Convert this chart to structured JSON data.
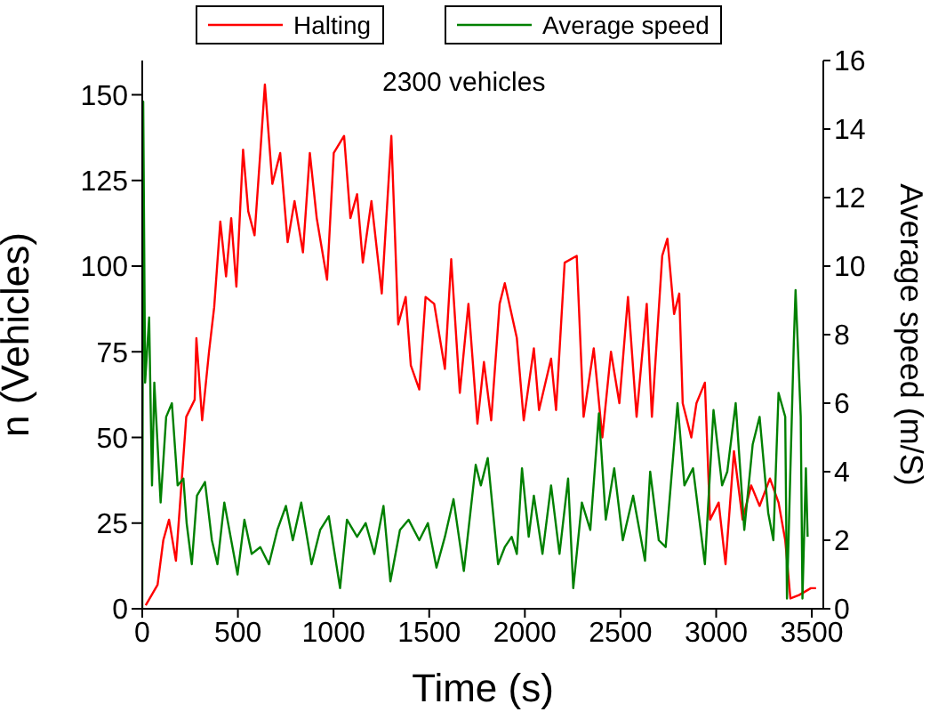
{
  "chart_data": {
    "type": "line",
    "xlabel": "Time (s)",
    "ylabel": "n (Vehicles)",
    "y2label": "Average speed (m/S)",
    "annotations": [
      "2300 vehicles"
    ],
    "xlim": [
      0,
      3560
    ],
    "xticks": [
      0,
      500,
      1000,
      1500,
      2000,
      2500,
      3000,
      3500
    ],
    "ylim": [
      0,
      160
    ],
    "yticks": [
      0,
      25,
      50,
      75,
      100,
      125,
      150
    ],
    "y2lim": [
      0,
      16
    ],
    "y2ticks": [
      0,
      2,
      4,
      6,
      8,
      10,
      12,
      14,
      16
    ],
    "legend": "top",
    "series": [
      {
        "name": "Halting",
        "color": "#ff0000",
        "x": [
          18,
          80,
          110,
          140,
          176,
          198,
          230,
          274,
          283,
          313,
          349,
          376,
          408,
          438,
          465,
          492,
          527,
          554,
          587,
          617,
          641,
          680,
          721,
          760,
          796,
          840,
          876,
          912,
          966,
          1001,
          1055,
          1088,
          1123,
          1153,
          1198,
          1252,
          1302,
          1338,
          1377,
          1404,
          1448,
          1481,
          1526,
          1582,
          1615,
          1660,
          1705,
          1752,
          1786,
          1824,
          1868,
          1895,
          1958,
          1994,
          2047,
          2074,
          2137,
          2163,
          2208,
          2271,
          2307,
          2360,
          2405,
          2450,
          2494,
          2539,
          2584,
          2637,
          2664,
          2718,
          2745,
          2780,
          2807,
          2825,
          2870,
          2897,
          2941,
          2968,
          3013,
          3049,
          3093,
          3138,
          3183,
          3227,
          3281,
          3326,
          3361,
          3388,
          3433,
          3495,
          3522
        ],
        "values": [
          1,
          7,
          20,
          26,
          14,
          31,
          56,
          61,
          79,
          55,
          75,
          88,
          113,
          97,
          114,
          94,
          134,
          116,
          109,
          133,
          153,
          124,
          133,
          107,
          119,
          104,
          133,
          114,
          96,
          133,
          138,
          114,
          121,
          101,
          119,
          92,
          138,
          83,
          91,
          71,
          64,
          91,
          89,
          70,
          102,
          63,
          89,
          54,
          72,
          55,
          89,
          95,
          79,
          55,
          76,
          58,
          73,
          58,
          101,
          103,
          56,
          76,
          50,
          75,
          60,
          91,
          56,
          89,
          56,
          103,
          108,
          86,
          92,
          60,
          50,
          60,
          66,
          26,
          31,
          13,
          46,
          26,
          36,
          30,
          38,
          31,
          20,
          3,
          4,
          6,
          6
        ]
      },
      {
        "name": "Average speed",
        "color": "#008000",
        "axis": "y2",
        "x": [
          0,
          5,
          15,
          36,
          51,
          63,
          96,
          125,
          155,
          185,
          215,
          232,
          259,
          286,
          328,
          364,
          393,
          429,
          465,
          498,
          534,
          572,
          617,
          662,
          706,
          751,
          787,
          831,
          885,
          930,
          975,
          1034,
          1070,
          1123,
          1168,
          1213,
          1261,
          1297,
          1347,
          1392,
          1448,
          1493,
          1538,
          1582,
          1627,
          1681,
          1743,
          1770,
          1806,
          1860,
          1895,
          1931,
          1958,
          1985,
          2020,
          2047,
          2092,
          2137,
          2181,
          2226,
          2253,
          2298,
          2342,
          2387,
          2423,
          2467,
          2512,
          2566,
          2628,
          2655,
          2700,
          2736,
          2798,
          2834,
          2879,
          2941,
          2986,
          3031,
          3058,
          3102,
          3147,
          3191,
          3227,
          3272,
          3299,
          3326,
          3361,
          3370,
          3406,
          3415,
          3442,
          3451,
          3469,
          3478
        ],
        "values": [
          0,
          14.8,
          6.6,
          8.5,
          3.6,
          6.6,
          3.1,
          5.6,
          6.0,
          3.6,
          3.8,
          2.5,
          1.3,
          3.3,
          3.7,
          2.0,
          1.3,
          3.1,
          2.0,
          1.0,
          2.6,
          1.6,
          1.8,
          1.3,
          2.3,
          3.0,
          2.0,
          3.1,
          1.3,
          2.3,
          2.7,
          0.6,
          2.6,
          2.1,
          2.5,
          1.6,
          3.0,
          0.8,
          2.3,
          2.6,
          2.0,
          2.5,
          1.2,
          2.1,
          3.2,
          1.1,
          4.2,
          3.6,
          4.4,
          1.3,
          1.8,
          2.1,
          1.6,
          4.1,
          2.1,
          3.3,
          1.6,
          3.6,
          1.6,
          3.8,
          0.6,
          3.1,
          2.3,
          5.7,
          2.6,
          4.1,
          2.0,
          3.3,
          1.4,
          4.0,
          2.0,
          1.8,
          6.0,
          3.6,
          4.1,
          1.3,
          5.8,
          3.6,
          4.0,
          6.0,
          2.3,
          4.8,
          5.6,
          2.8,
          2.0,
          6.3,
          5.6,
          0.3,
          7.8,
          9.3,
          5.6,
          0.3,
          4.1,
          2.1
        ]
      }
    ]
  }
}
